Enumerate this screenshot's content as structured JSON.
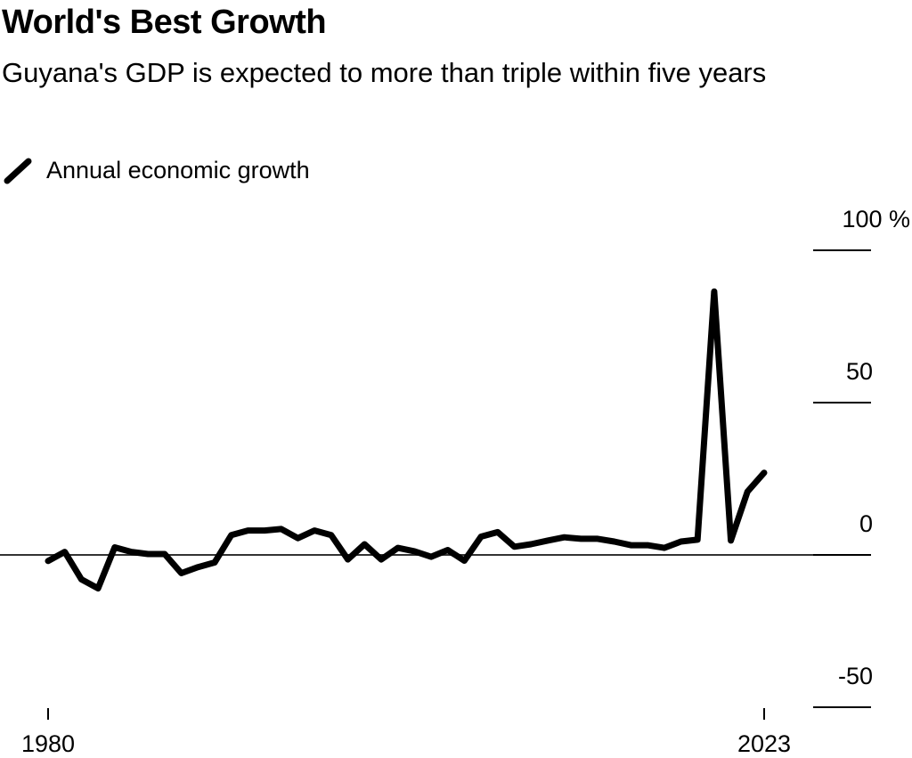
{
  "chart_data": {
    "type": "line",
    "title": "World's Best Growth",
    "subtitle": "Guyana's GDP is expected to more than triple within five years",
    "xlabel": "",
    "ylabel": "",
    "ylim": [
      -50,
      100
    ],
    "xlim": [
      1980,
      2023
    ],
    "y_ticks": [
      {
        "value": 100,
        "label": "100 %"
      },
      {
        "value": 50,
        "label": "50"
      },
      {
        "value": 0,
        "label": "0"
      },
      {
        "value": -50,
        "label": "-50"
      }
    ],
    "x_ticks": [
      {
        "value": 1980,
        "label": "1980"
      },
      {
        "value": 2023,
        "label": "2023"
      }
    ],
    "grid": false,
    "legend": {
      "placement": "top-left",
      "entries": [
        "Annual economic growth"
      ]
    },
    "line_color": "#000000",
    "series": [
      {
        "name": "Annual economic growth",
        "x": [
          1980,
          1981,
          1982,
          1983,
          1984,
          1985,
          1986,
          1987,
          1988,
          1989,
          1990,
          1991,
          1992,
          1993,
          1994,
          1995,
          1996,
          1997,
          1998,
          1999,
          2000,
          2001,
          2002,
          2003,
          2004,
          2005,
          2006,
          2007,
          2008,
          2009,
          2010,
          2011,
          2012,
          2013,
          2014,
          2015,
          2016,
          2017,
          2018,
          2019,
          2020,
          2021,
          2022,
          2023
        ],
        "y": [
          -2,
          1,
          -8,
          -11,
          2.5,
          1,
          0.3,
          0.3,
          -6,
          -4,
          -2.5,
          6.5,
          8,
          8,
          8.5,
          5.5,
          8,
          6.5,
          -1.5,
          3.5,
          -1.5,
          2.3,
          1.2,
          -0.6,
          1.6,
          -1.9,
          6,
          7.5,
          2.7,
          3.5,
          4.7,
          5.8,
          5.3,
          5.3,
          4.4,
          3.2,
          3.2,
          2.3,
          4.4,
          5,
          86.5,
          4.7,
          20.8,
          27
        ]
      }
    ]
  }
}
